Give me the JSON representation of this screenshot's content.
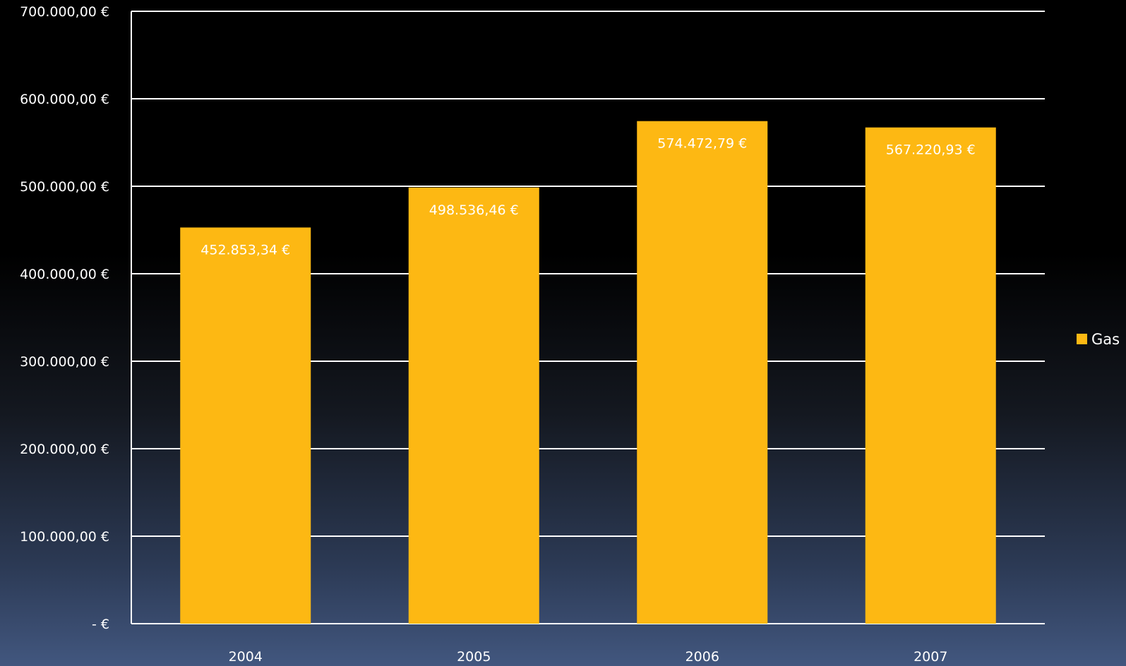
{
  "chart_data": {
    "type": "bar",
    "categories": [
      "2004",
      "2005",
      "2006",
      "2007"
    ],
    "series": [
      {
        "name": "Gas",
        "values": [
          452853.34,
          498536.46,
          574472.79,
          567220.93
        ],
        "data_labels": [
          "452.853,34 €",
          "498.536,46 €",
          "574.472,79 €",
          "567.220,93 €"
        ]
      }
    ],
    "ylim": [
      0,
      700000
    ],
    "y_ticks": [
      0,
      100000,
      200000,
      300000,
      400000,
      500000,
      600000,
      700000
    ],
    "y_tick_labels": [
      "-   €",
      "100.000,00 €",
      "200.000,00 €",
      "300.000,00 €",
      "400.000,00 €",
      "500.000,00 €",
      "600.000,00 €",
      "700.000,00 €"
    ],
    "grid": true,
    "legend_position": "right",
    "colors": {
      "bar": "#FDB813",
      "grid": "#FFFFFF",
      "text": "#FFFFFF",
      "background_top": "#000000",
      "background_bottom": "#42577F"
    }
  }
}
